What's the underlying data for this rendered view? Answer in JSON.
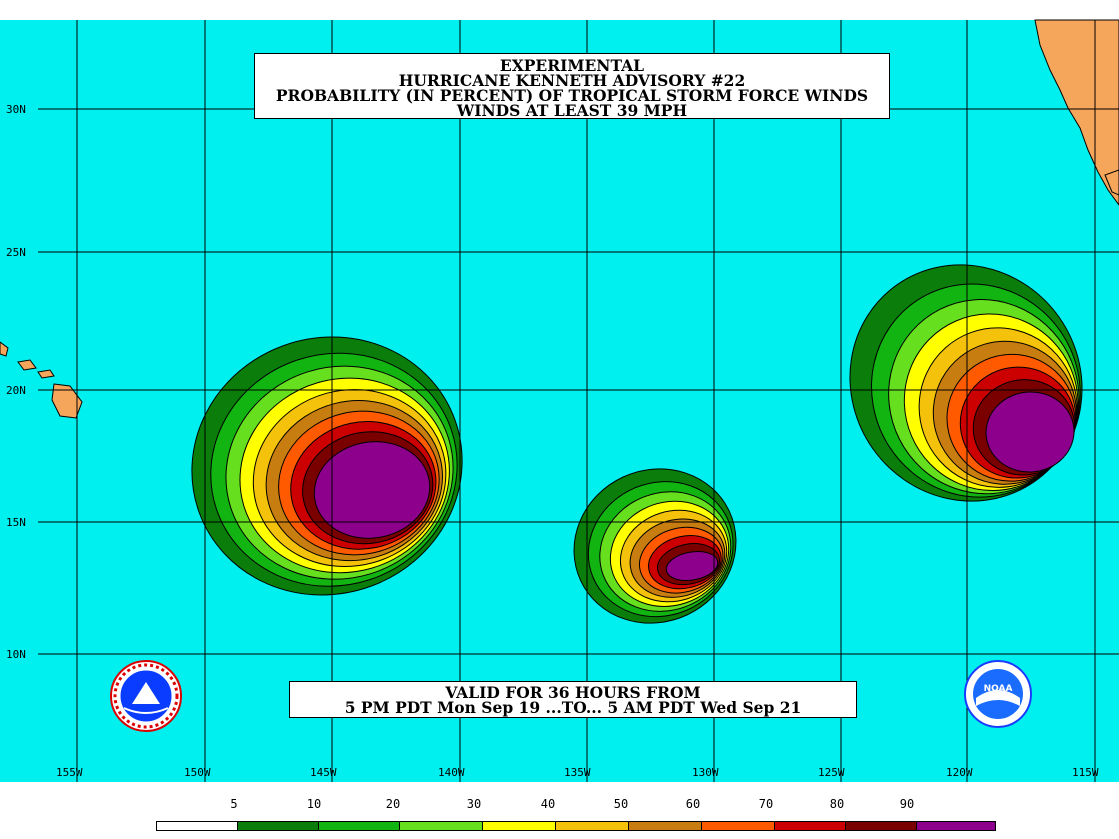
{
  "title": {
    "line1": "EXPERIMENTAL",
    "line2": "HURRICANE KENNETH ADVISORY #22",
    "line3": "PROBABILITY (IN PERCENT) OF TROPICAL STORM FORCE WINDS",
    "line4": "WINDS AT LEAST 39 MPH"
  },
  "valid": {
    "line1": "VALID FOR 36 HOURS FROM",
    "line2": "5 PM PDT Mon Sep 19 ...TO... 5 AM PDT Wed Sep 21"
  },
  "lat_labels": [
    "30N",
    "25N",
    "20N",
    "15N",
    "10N"
  ],
  "lon_labels": [
    "155W",
    "150W",
    "145W",
    "140W",
    "135W",
    "130W",
    "125W",
    "120W",
    "115W"
  ],
  "legend": {
    "labels": [
      "5",
      "10",
      "20",
      "30",
      "40",
      "50",
      "60",
      "70",
      "80",
      "90"
    ],
    "colors": [
      "#ffffff",
      "#0a7d0a",
      "#12b412",
      "#66e01e",
      "#ffff00",
      "#f4c20a",
      "#c87d10",
      "#ff5a00",
      "#cc0000",
      "#7a0000",
      "#8c008c"
    ]
  },
  "map_colors": {
    "ocean": "#00f0f0",
    "land": "#f5a65b",
    "contour_levels": [
      "#0a7d0a",
      "#12b412",
      "#66e01e",
      "#ffff00",
      "#f4c20a",
      "#c87d10",
      "#ff5a00",
      "#cc0000",
      "#7a0000",
      "#8c008c"
    ]
  },
  "logos": {
    "left": "nws-logo-icon",
    "right": "noaa-logo-icon",
    "noaa_text": "NOAA"
  }
}
